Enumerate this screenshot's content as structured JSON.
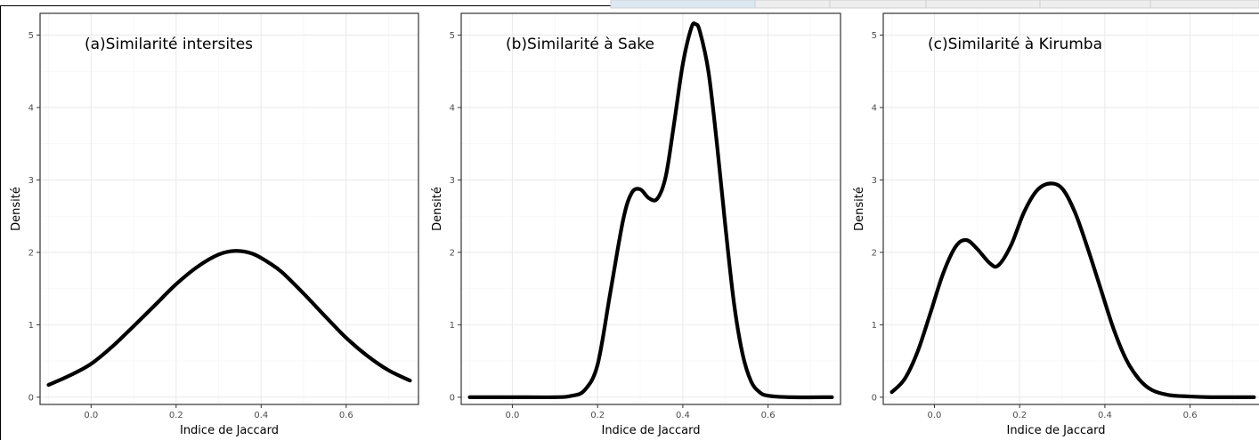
{
  "chart_data": [
    {
      "type": "line",
      "title": "(a)Similarité intersites",
      "xlabel": "Indice de Jaccard",
      "ylabel": "Densité",
      "xlim": [
        -0.12,
        0.77
      ],
      "ylim": [
        -0.1,
        5.3
      ],
      "x_ticks": [
        0.0,
        0.2,
        0.4,
        0.6
      ],
      "x_tick_labels": [
        "0.0",
        "0.2",
        "0.4",
        "0.6"
      ],
      "y_ticks": [
        0,
        1,
        2,
        3,
        4,
        5
      ],
      "y_tick_labels": [
        "0",
        "1",
        "2",
        "3",
        "4",
        "5"
      ],
      "grid": true,
      "series": [
        {
          "x": [
            -0.1,
            -0.05,
            0.0,
            0.05,
            0.1,
            0.15,
            0.2,
            0.25,
            0.3,
            0.34,
            0.38,
            0.42,
            0.45,
            0.5,
            0.55,
            0.6,
            0.65,
            0.7,
            0.75
          ],
          "y": [
            0.17,
            0.3,
            0.46,
            0.7,
            0.98,
            1.27,
            1.56,
            1.8,
            1.97,
            2.02,
            1.98,
            1.85,
            1.72,
            1.43,
            1.12,
            0.82,
            0.57,
            0.37,
            0.23
          ]
        }
      ]
    },
    {
      "type": "line",
      "title": "(b)Similarité à Sake",
      "xlabel": "Indice de Jaccard",
      "ylabel": "Densité",
      "xlim": [
        -0.12,
        0.77
      ],
      "ylim": [
        -0.1,
        5.3
      ],
      "x_ticks": [
        0.0,
        0.2,
        0.4,
        0.6
      ],
      "x_tick_labels": [
        "0.0",
        "0.2",
        "0.4",
        "0.6"
      ],
      "y_ticks": [
        0,
        1,
        2,
        3,
        4,
        5
      ],
      "y_tick_labels": [
        "0",
        "1",
        "2",
        "3",
        "4",
        "5"
      ],
      "grid": true,
      "series": [
        {
          "x": [
            -0.1,
            0.0,
            0.1,
            0.14,
            0.17,
            0.2,
            0.23,
            0.26,
            0.28,
            0.3,
            0.32,
            0.34,
            0.36,
            0.38,
            0.4,
            0.42,
            0.43,
            0.44,
            0.46,
            0.48,
            0.5,
            0.52,
            0.54,
            0.56,
            0.58,
            0.6,
            0.65,
            0.75
          ],
          "y": [
            0.0,
            0.0,
            0.0,
            0.02,
            0.1,
            0.45,
            1.45,
            2.45,
            2.82,
            2.87,
            2.75,
            2.74,
            3.05,
            3.8,
            4.6,
            5.1,
            5.15,
            5.05,
            4.5,
            3.5,
            2.35,
            1.3,
            0.6,
            0.22,
            0.07,
            0.02,
            0.0,
            0.0
          ]
        }
      ]
    },
    {
      "type": "line",
      "title": "(c)Similarité à Kirumba",
      "xlabel": "Indice de Jaccard",
      "ylabel": "Densité",
      "xlim": [
        -0.12,
        0.77
      ],
      "ylim": [
        -0.1,
        5.3
      ],
      "x_ticks": [
        0.0,
        0.2,
        0.4,
        0.6
      ],
      "x_tick_labels": [
        "0.0",
        "0.2",
        "0.4",
        "0.6"
      ],
      "y_ticks": [
        0,
        1,
        2,
        3,
        4,
        5
      ],
      "y_tick_labels": [
        "0",
        "1",
        "2",
        "3",
        "4",
        "5"
      ],
      "grid": true,
      "series": [
        {
          "x": [
            -0.1,
            -0.07,
            -0.04,
            -0.01,
            0.02,
            0.05,
            0.075,
            0.1,
            0.13,
            0.15,
            0.18,
            0.21,
            0.24,
            0.27,
            0.3,
            0.33,
            0.36,
            0.39,
            0.42,
            0.45,
            0.48,
            0.51,
            0.55,
            0.6,
            0.65,
            0.7,
            0.75
          ],
          "y": [
            0.07,
            0.25,
            0.62,
            1.15,
            1.7,
            2.08,
            2.17,
            2.05,
            1.85,
            1.82,
            2.1,
            2.55,
            2.85,
            2.95,
            2.88,
            2.55,
            2.05,
            1.5,
            0.95,
            0.52,
            0.25,
            0.1,
            0.03,
            0.01,
            0.0,
            0.0,
            0.0
          ]
        }
      ]
    }
  ]
}
